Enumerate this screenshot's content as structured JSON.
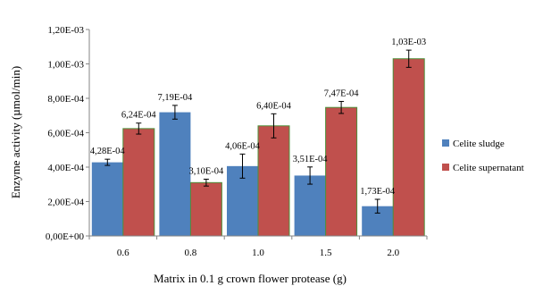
{
  "chart_data": {
    "type": "bar",
    "title": "",
    "xlabel": "Matrix in 0.1 g crown flower protease (g)",
    "ylabel": "Enzyme activity (µmol/min)",
    "categories": [
      "0.6",
      "0.8",
      "1.0",
      "1.5",
      "2.0"
    ],
    "ylim": [
      0,
      0.0012
    ],
    "y_ticks": [
      "0,00E+00",
      "2,00E-04",
      "4,00E-04",
      "6,00E-04",
      "8,00E-04",
      "1,00E-03",
      "1,20E-03"
    ],
    "grid": false,
    "legend_position": "right",
    "series": [
      {
        "name": "Celite sludge",
        "color": "#4f81bd",
        "values": [
          0.000428,
          0.000719,
          0.000406,
          0.000351,
          0.000173
        ],
        "labels": [
          "4,28E-04",
          "7,19E-04",
          "4,06E-04",
          "3,51E-04",
          "1,73E-04"
        ],
        "errors": [
          1.8e-05,
          4e-05,
          7e-05,
          5e-05,
          4e-05
        ]
      },
      {
        "name": "Celite supernatant",
        "color": "#c0504d",
        "values": [
          0.000624,
          0.00031,
          0.00064,
          0.000747,
          0.00103
        ],
        "labels": [
          "6,24E-04",
          "3,10E-04",
          "6,40E-04",
          "7,47E-04",
          "1,03E-03"
        ],
        "errors": [
          3.2e-05,
          2e-05,
          7e-05,
          3.5e-05,
          5e-05
        ]
      }
    ]
  }
}
